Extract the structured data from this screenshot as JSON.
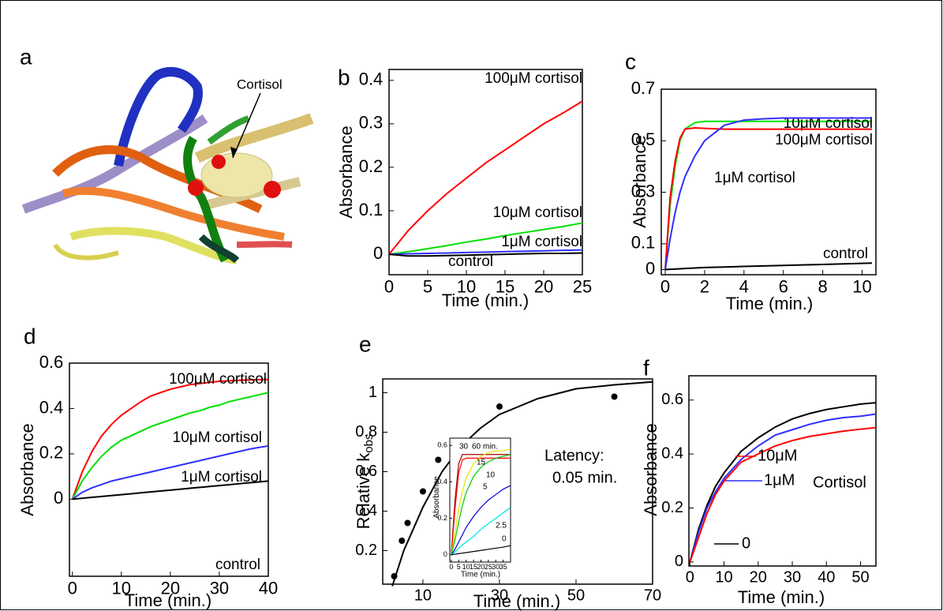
{
  "panel_a": {
    "label": "a",
    "annotation": "Cortisol"
  },
  "chart_data": [
    {
      "type": "line",
      "label": "b",
      "x_label": "Time (min.)",
      "y_label": "Absorbance",
      "xlim": [
        0,
        25
      ],
      "ylim": [
        -0.047,
        0.425
      ],
      "xticks": [
        0,
        5,
        10,
        15,
        20,
        25
      ],
      "yticks": [
        0,
        0.1,
        0.2,
        0.3,
        0.4
      ],
      "x": [
        0,
        2.5,
        5,
        7.5,
        10,
        12.5,
        15,
        17.5,
        20,
        22.5,
        25
      ],
      "series": [
        {
          "name": "100μM cortisol",
          "color": "#ff0000",
          "values": [
            0,
            0.055,
            0.1,
            0.14,
            0.175,
            0.21,
            0.24,
            0.27,
            0.3,
            0.325,
            0.352
          ]
        },
        {
          "name": "10μM cortisol",
          "color": "#00e000",
          "values": [
            0,
            0.006,
            0.013,
            0.02,
            0.028,
            0.035,
            0.043,
            0.05,
            0.057,
            0.064,
            0.072
          ]
        },
        {
          "name": "1μM cortisol",
          "color": "#3030ff",
          "values": [
            0,
            0.001,
            0.002,
            0.003,
            0.004,
            0.005,
            0.006,
            0.007,
            0.008,
            0.009,
            0.01
          ]
        },
        {
          "name": "control",
          "color": "#000000",
          "values": [
            0,
            -0.004,
            -0.004,
            -0.003,
            -0.002,
            -0.001,
            0,
            0.001,
            0.002,
            0.002,
            0.003
          ]
        }
      ]
    },
    {
      "type": "line",
      "label": "c",
      "x_label": "Time (min.)",
      "y_label": "Absorbance",
      "xlim": [
        -0.2,
        10.7
      ],
      "ylim": [
        -0.02,
        0.7
      ],
      "xticks": [
        0,
        2,
        4,
        6,
        8,
        10
      ],
      "yticks": [
        0,
        0.1,
        0.3,
        0.5,
        0.7
      ],
      "x": [
        0,
        0.25,
        0.5,
        0.75,
        1,
        1.5,
        2,
        3,
        4,
        5,
        6,
        8,
        10.5
      ],
      "series": [
        {
          "name": "10μM cortisol",
          "color": "#00e000",
          "values": [
            0,
            0.25,
            0.4,
            0.5,
            0.545,
            0.57,
            0.575,
            0.575,
            0.575,
            0.575,
            0.575,
            0.575,
            0.575
          ]
        },
        {
          "name": "100μM cortisol",
          "color": "#ff0000",
          "values": [
            0,
            0.28,
            0.42,
            0.51,
            0.545,
            0.55,
            0.548,
            0.545,
            0.545,
            0.545,
            0.545,
            0.545,
            0.545
          ]
        },
        {
          "name": "1μM cortisol",
          "color": "#3030ff",
          "values": [
            0,
            0.12,
            0.22,
            0.3,
            0.36,
            0.44,
            0.5,
            0.56,
            0.58,
            0.585,
            0.588,
            0.588,
            0.588
          ]
        },
        {
          "name": "control",
          "color": "#000000",
          "values": [
            0,
            0.001,
            0.002,
            0.003,
            0.004,
            0.006,
            0.008,
            0.01,
            0.012,
            0.014,
            0.016,
            0.02,
            0.025
          ]
        }
      ]
    },
    {
      "type": "line",
      "label": "d",
      "x_label": "Time (min.)",
      "y_label": "Absorbance",
      "xlim": [
        -0.6,
        40
      ],
      "ylim": [
        -0.34,
        0.6
      ],
      "xticks": [
        0,
        10,
        20,
        30,
        40
      ],
      "yticks": [
        0,
        0.2,
        0.4,
        0.6
      ],
      "x": [
        0,
        2,
        4,
        6,
        8,
        10,
        12,
        14,
        16,
        18,
        20,
        22,
        24,
        26,
        28,
        30,
        32,
        34,
        36,
        38,
        40
      ],
      "series": [
        {
          "name": "100μM cortisol",
          "color": "#ff0000",
          "values": [
            0,
            0.12,
            0.21,
            0.28,
            0.33,
            0.37,
            0.4,
            0.43,
            0.455,
            0.47,
            0.485,
            0.495,
            0.505,
            0.51,
            0.515,
            0.52,
            0.522,
            0.524,
            0.526,
            0.527,
            0.528
          ]
        },
        {
          "name": "10μM cortisol",
          "color": "#00e000",
          "values": [
            0,
            0.08,
            0.14,
            0.19,
            0.23,
            0.26,
            0.28,
            0.3,
            0.32,
            0.335,
            0.35,
            0.365,
            0.38,
            0.39,
            0.405,
            0.415,
            0.43,
            0.44,
            0.45,
            0.46,
            0.47
          ]
        },
        {
          "name": "1μM cortisol",
          "color": "#3030ff",
          "values": [
            0,
            0.03,
            0.05,
            0.065,
            0.08,
            0.09,
            0.1,
            0.11,
            0.12,
            0.13,
            0.14,
            0.15,
            0.16,
            0.17,
            0.18,
            0.19,
            0.2,
            0.21,
            0.22,
            0.228,
            0.235
          ]
        },
        {
          "name": "control",
          "color": "#000000",
          "values": [
            0,
            0.004,
            0.008,
            0.012,
            0.016,
            0.02,
            0.024,
            0.028,
            0.032,
            0.036,
            0.04,
            0.044,
            0.048,
            0.052,
            0.056,
            0.06,
            0.064,
            0.068,
            0.072,
            0.076,
            0.08
          ]
        }
      ]
    },
    {
      "type": "scatter",
      "label": "e",
      "x_label": "Time (min.)",
      "y_label": "Relative k",
      "y_label_subscript": "obs",
      "annotations": [
        "Latency:",
        "0.05 min."
      ],
      "xlim": [
        -0.5,
        70
      ],
      "ylim": [
        0.03,
        1.07
      ],
      "xticks": [
        10,
        30,
        50,
        70
      ],
      "yticks": [
        0.2,
        0.4,
        0.6,
        0.8,
        1
      ],
      "x": [
        2.5,
        4.5,
        6,
        10,
        14,
        30,
        60
      ],
      "values": [
        0.07,
        0.25,
        0.34,
        0.5,
        0.66,
        0.93,
        0.98
      ],
      "color": "#000000",
      "fit_x": [
        2,
        5,
        10,
        15,
        20,
        25,
        30,
        40,
        50,
        60,
        70
      ],
      "fit_values": [
        0.02,
        0.2,
        0.42,
        0.6,
        0.73,
        0.82,
        0.89,
        0.97,
        1.02,
        1.04,
        1.055
      ]
    },
    {
      "type": "line",
      "x_label": "Time (min.)",
      "y_label": "Absorbance",
      "xlim": [
        -1,
        40
      ],
      "ylim": [
        -0.04,
        0.64
      ],
      "xticks": [
        0,
        5,
        10,
        15,
        20,
        25,
        30,
        35
      ],
      "yticks": [
        0,
        0.2,
        0.4,
        0.6
      ],
      "x": [
        0,
        2.5,
        5,
        7.5,
        10,
        15,
        20,
        25,
        30,
        35,
        40
      ],
      "series": [
        {
          "name": "60 min.",
          "color": "#a00000",
          "values": [
            0,
            0.3,
            0.5,
            0.55,
            0.55,
            0.55,
            0.55,
            0.55,
            0.55,
            0.55,
            0.55
          ]
        },
        {
          "name": "30",
          "color": "#ff0000",
          "values": [
            0,
            0.25,
            0.45,
            0.52,
            0.53,
            0.53,
            0.53,
            0.53,
            0.53,
            0.53,
            0.53
          ]
        },
        {
          "name": "15",
          "color": "#e6e600",
          "values": [
            0,
            0.12,
            0.25,
            0.35,
            0.42,
            0.5,
            0.54,
            0.56,
            0.57,
            0.57,
            0.58
          ]
        },
        {
          "name": "10",
          "color": "#00cc00",
          "values": [
            0,
            0.08,
            0.18,
            0.27,
            0.34,
            0.43,
            0.48,
            0.51,
            0.53,
            0.54,
            0.55
          ]
        },
        {
          "name": "5",
          "color": "#0000cc",
          "values": [
            0,
            0.03,
            0.07,
            0.11,
            0.15,
            0.21,
            0.26,
            0.3,
            0.33,
            0.36,
            0.38
          ]
        },
        {
          "name": "2.5",
          "color": "#00e0e0",
          "values": [
            0,
            0.015,
            0.035,
            0.055,
            0.07,
            0.1,
            0.14,
            0.17,
            0.2,
            0.23,
            0.26
          ]
        },
        {
          "name": "0",
          "color": "#000000",
          "values": [
            0,
            0.003,
            0.006,
            0.009,
            0.012,
            0.018,
            0.024,
            0.03,
            0.036,
            0.042,
            0.05
          ]
        }
      ]
    },
    {
      "type": "line",
      "label": "f",
      "x_label": "Time (min.)",
      "y_label": "Absorbance",
      "annotation": "Cortisol",
      "xlim": [
        -0.3,
        54.5
      ],
      "ylim": [
        -0.015,
        0.69
      ],
      "xticks": [
        0,
        10,
        20,
        30,
        40,
        50
      ],
      "yticks": [
        0,
        0.2,
        0.4,
        0.6
      ],
      "x": [
        0,
        2.5,
        5,
        7.5,
        10,
        15,
        20,
        25,
        30,
        35,
        40,
        45,
        50,
        54.5
      ],
      "series": [
        {
          "name": "0",
          "color": "#000000",
          "values": [
            0,
            0.12,
            0.21,
            0.28,
            0.33,
            0.41,
            0.46,
            0.5,
            0.53,
            0.55,
            0.565,
            0.575,
            0.585,
            0.59
          ]
        },
        {
          "name": "1μM",
          "color": "#3030ff",
          "values": [
            0,
            0.11,
            0.2,
            0.26,
            0.31,
            0.38,
            0.43,
            0.47,
            0.49,
            0.51,
            0.525,
            0.535,
            0.54,
            0.548
          ]
        },
        {
          "name": "10μM",
          "color": "#ff0000",
          "values": [
            0,
            0.09,
            0.18,
            0.25,
            0.3,
            0.37,
            0.4,
            0.43,
            0.45,
            0.465,
            0.475,
            0.485,
            0.492,
            0.498
          ]
        }
      ]
    }
  ]
}
